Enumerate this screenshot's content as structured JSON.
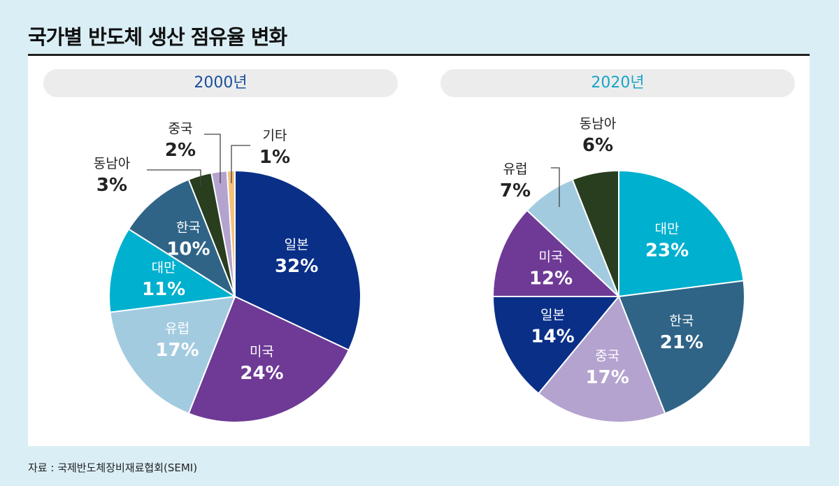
{
  "title": "국가별 반도체 생산 점유율 변화",
  "source": "자료 : 국제반도체장비재료협회(SEMI)",
  "chart_data": [
    {
      "type": "pie",
      "title": "2000년",
      "title_color": "#1a4f9c",
      "labels": [
        "일본",
        "미국",
        "유럽",
        "대만",
        "한국",
        "동남아",
        "중국",
        "기타"
      ],
      "values": [
        32,
        24,
        17,
        11,
        10,
        3,
        2,
        1
      ],
      "colors": [
        "#0a2f87",
        "#6e3a96",
        "#a3cbe0",
        "#00b0cf",
        "#2f6487",
        "#283e1f",
        "#b4a3cf",
        "#f5c07a"
      ]
    },
    {
      "type": "pie",
      "title": "2020년",
      "title_color": "#1aa3c8",
      "labels": [
        "대만",
        "한국",
        "중국",
        "일본",
        "미국",
        "유럽",
        "동남아"
      ],
      "values": [
        23,
        21,
        17,
        14,
        12,
        7,
        6
      ],
      "colors": [
        "#00b0cf",
        "#2f6487",
        "#b4a3cf",
        "#0a2f87",
        "#6e3a96",
        "#a3cbe0",
        "#283e1f"
      ]
    }
  ]
}
